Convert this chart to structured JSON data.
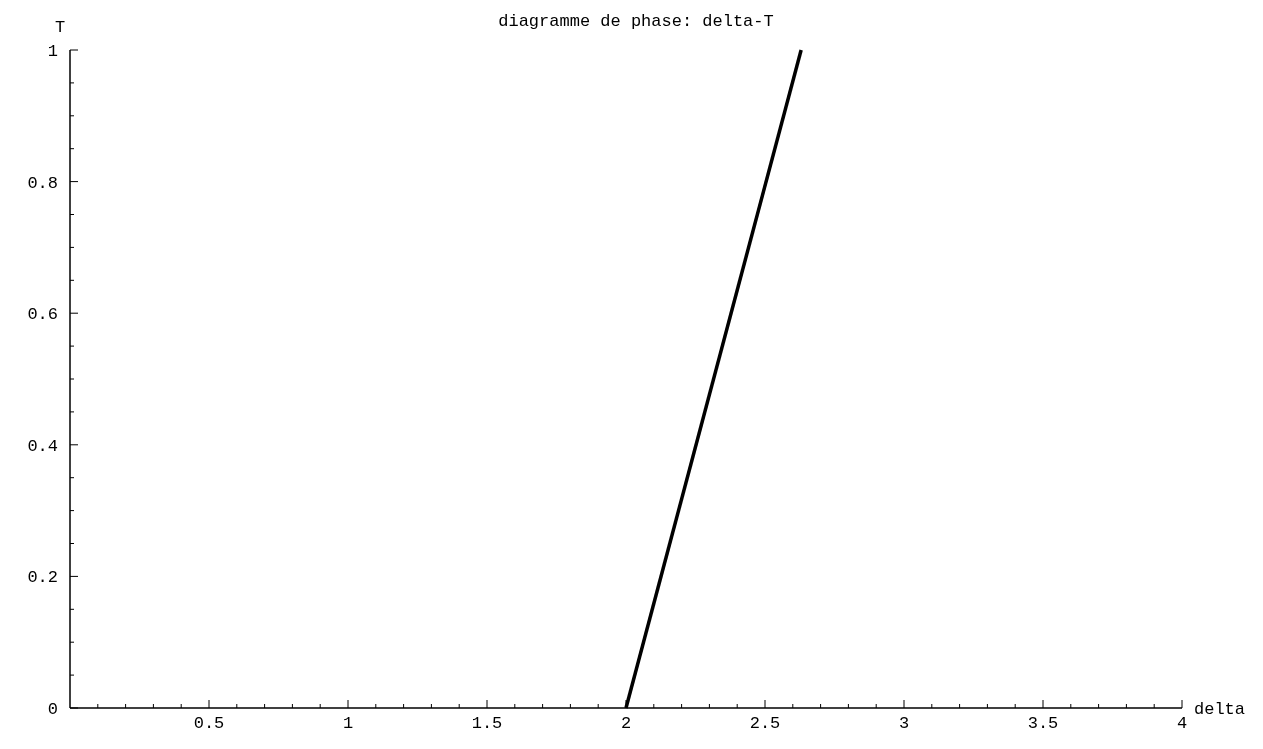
{
  "chart_data": {
    "type": "line",
    "title": "diagramme de phase: delta-T",
    "xlabel": "delta",
    "ylabel": "T",
    "x": [
      2,
      2.63
    ],
    "series": [
      {
        "color": "#000000",
        "values": [
          0,
          1
        ]
      }
    ],
    "xlim": [
      0,
      4
    ],
    "ylim": [
      0,
      1
    ],
    "xticks": [
      {
        "value": 0.1,
        "label": null
      },
      {
        "value": 0.2,
        "label": null
      },
      {
        "value": 0.3,
        "label": null
      },
      {
        "value": 0.4,
        "label": null
      },
      0.5,
      {
        "value": 0.6,
        "label": null
      },
      {
        "value": 0.7,
        "label": null
      },
      {
        "value": 0.8,
        "label": null
      },
      {
        "value": 0.9,
        "label": null
      },
      1,
      {
        "value": 1.1,
        "label": null
      },
      {
        "value": 1.2,
        "label": null
      },
      {
        "value": 1.3,
        "label": null
      },
      {
        "value": 1.4,
        "label": null
      },
      1.5,
      {
        "value": 1.6,
        "label": null
      },
      {
        "value": 1.7,
        "label": null
      },
      {
        "value": 1.8,
        "label": null
      },
      {
        "value": 1.9,
        "label": null
      },
      2,
      {
        "value": 2.1,
        "label": null
      },
      {
        "value": 2.2,
        "label": null
      },
      {
        "value": 2.3,
        "label": null
      },
      {
        "value": 2.4,
        "label": null
      },
      2.5,
      {
        "value": 2.6,
        "label": null
      },
      {
        "value": 2.7,
        "label": null
      },
      {
        "value": 2.8,
        "label": null
      },
      {
        "value": 2.9,
        "label": null
      },
      3,
      {
        "value": 3.1,
        "label": null
      },
      {
        "value": 3.2,
        "label": null
      },
      {
        "value": 3.3,
        "label": null
      },
      {
        "value": 3.4,
        "label": null
      },
      3.5,
      {
        "value": 3.6,
        "label": null
      },
      {
        "value": 3.7,
        "label": null
      },
      {
        "value": 3.8,
        "label": null
      },
      {
        "value": 3.9,
        "label": null
      },
      4
    ],
    "yticks": [
      0,
      {
        "value": 0.05,
        "label": null
      },
      {
        "value": 0.1,
        "label": null
      },
      {
        "value": 0.15,
        "label": null
      },
      0.2,
      {
        "value": 0.25,
        "label": null
      },
      {
        "value": 0.3,
        "label": null
      },
      {
        "value": 0.35,
        "label": null
      },
      0.4,
      {
        "value": 0.45,
        "label": null
      },
      {
        "value": 0.5,
        "label": null
      },
      {
        "value": 0.55,
        "label": null
      },
      0.6,
      {
        "value": 0.65,
        "label": null
      },
      {
        "value": 0.7,
        "label": null
      },
      {
        "value": 0.75,
        "label": null
      },
      0.8,
      {
        "value": 0.85,
        "label": null
      },
      {
        "value": 0.9,
        "label": null
      },
      {
        "value": 0.95,
        "label": null
      },
      1
    ]
  }
}
